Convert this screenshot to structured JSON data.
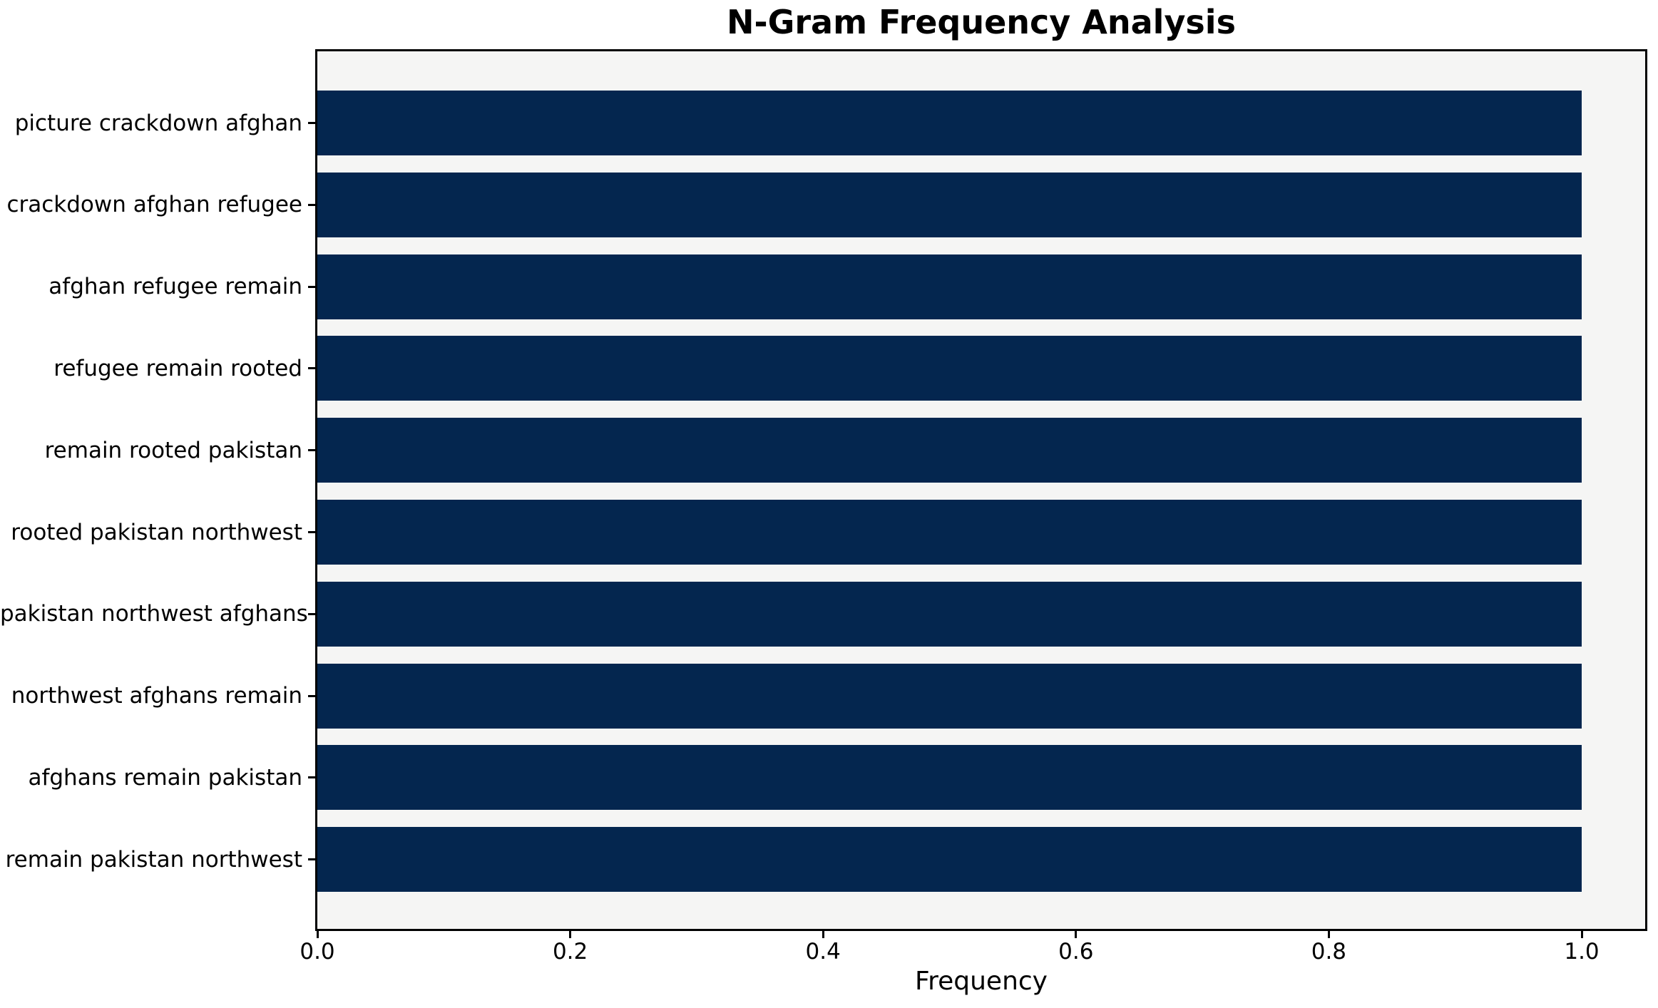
{
  "chart_data": {
    "type": "bar",
    "orientation": "horizontal",
    "title": "N-Gram Frequency Analysis",
    "xlabel": "Frequency",
    "ylabel": "",
    "categories": [
      "picture crackdown afghan",
      "crackdown afghan refugee",
      "afghan refugee remain",
      "refugee remain rooted",
      "remain rooted pakistan",
      "rooted pakistan northwest",
      "pakistan northwest afghans",
      "northwest afghans remain",
      "afghans remain pakistan",
      "remain pakistan northwest"
    ],
    "values": [
      1.0,
      1.0,
      1.0,
      1.0,
      1.0,
      1.0,
      1.0,
      1.0,
      1.0,
      1.0
    ],
    "xticks": [
      0.0,
      0.2,
      0.4,
      0.6,
      0.8,
      1.0
    ],
    "xtick_labels": [
      "0.0",
      "0.2",
      "0.4",
      "0.6",
      "0.8",
      "1.0"
    ],
    "xlim": [
      0,
      1.05
    ],
    "grid": false,
    "legend": "none",
    "colors": {
      "bar": "#04264f",
      "plot_bg": "#f5f5f4",
      "figure_bg": "#ffffff",
      "text": "#000000",
      "spine": "#000000"
    }
  }
}
